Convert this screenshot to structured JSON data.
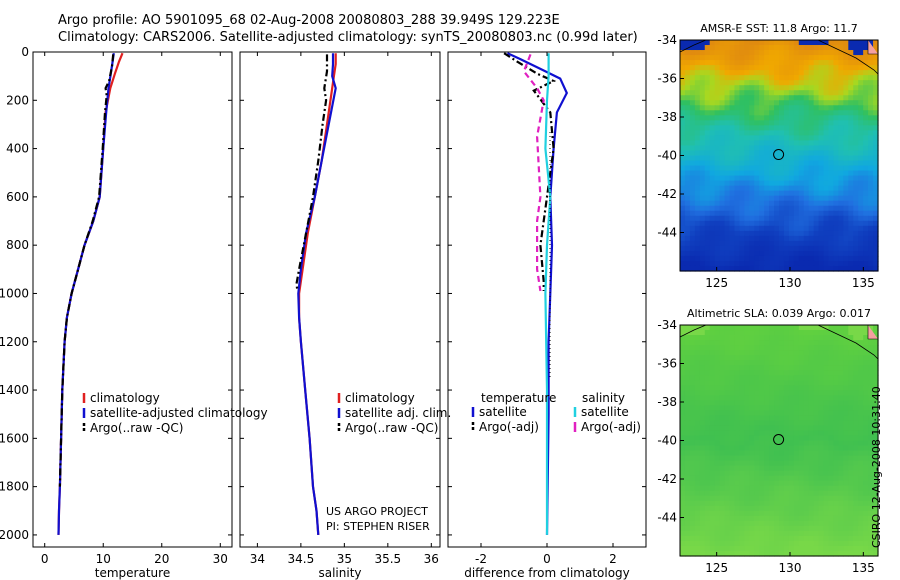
{
  "header": {
    "title_line1": "Argo profile: AO 5901095_68 02-Aug-2008 20080803_288 39.949S 129.223E",
    "title_line2": "Climatology: CARS2006. Satellite-adjusted climatology: synTS_20080803.nc (0.99d later)"
  },
  "credits": {
    "line1": "US ARGO PROJECT",
    "line2": "PI: STEPHEN RISER"
  },
  "stamp": "CSIRO 12-Aug-2008 10:31:40",
  "colors": {
    "climatology": "#e02020",
    "satellite": "#1010d0",
    "argo": "#000000",
    "satellite_salinity": "#20d0e0",
    "argo_salinity": "#e020c0"
  },
  "chart_data": [
    {
      "type": "line",
      "id": "temperature",
      "xlabel": "temperature",
      "ylabel": "",
      "xlim": [
        -2,
        32
      ],
      "ylim": [
        2050,
        0
      ],
      "xticks": [
        0,
        10,
        20,
        30
      ],
      "yticks": [
        0,
        200,
        400,
        600,
        800,
        1000,
        1200,
        1400,
        1600,
        1800,
        2000
      ],
      "legend": {
        "position": "lower-right",
        "entries": [
          "climatology",
          "satellite-adjusted climatology",
          "Argo(..raw -QC)"
        ]
      },
      "series": [
        {
          "name": "climatology",
          "style": "solid",
          "color_key": "climatology",
          "x": [
            13.3,
            12.7,
            12.0,
            11.2,
            10.4,
            10.0,
            9.4,
            8.3,
            6.8,
            5.7,
            4.6,
            3.8,
            3.4,
            3.0,
            2.8,
            2.6,
            2.45,
            2.35
          ],
          "y": [
            5,
            40,
            90,
            150,
            250,
            400,
            600,
            700,
            800,
            900,
            1000,
            1100,
            1200,
            1400,
            1600,
            1800,
            1900,
            2000
          ]
        },
        {
          "name": "satellite-adjusted climatology",
          "style": "solid",
          "color_key": "satellite",
          "x": [
            11.8,
            11.6,
            11.3,
            10.9,
            10.5,
            10.0,
            9.4,
            8.3,
            6.8,
            5.7,
            4.6,
            3.8,
            3.4,
            3.0,
            2.8,
            2.6,
            2.45,
            2.35
          ],
          "y": [
            5,
            40,
            90,
            150,
            250,
            400,
            600,
            700,
            800,
            900,
            1000,
            1100,
            1200,
            1400,
            1600,
            1800,
            1900,
            2000
          ]
        },
        {
          "name": "Argo(..raw -QC)",
          "style": "dashdot",
          "color_key": "argo",
          "x": [
            11.7,
            11.5,
            11.0,
            10.4,
            10.6,
            10.3,
            9.9,
            9.3,
            8.2,
            6.8,
            5.7,
            4.6,
            3.8,
            3.4,
            3.0,
            2.8,
            2.6
          ],
          "y": [
            10,
            60,
            120,
            150,
            180,
            250,
            400,
            600,
            700,
            800,
            900,
            1000,
            1100,
            1200,
            1400,
            1600,
            1800
          ]
        }
      ]
    },
    {
      "type": "line",
      "id": "salinity",
      "xlabel": "salinity",
      "ylabel": "",
      "xlim": [
        33.8,
        36.1
      ],
      "ylim": [
        2050,
        0
      ],
      "xticks": [
        34,
        34.5,
        35,
        35.5,
        36
      ],
      "xticklabels": [
        "34",
        "34.5",
        "35",
        "35.5",
        "36"
      ],
      "legend": {
        "position": "lower-right",
        "entries": [
          "climatology",
          "satellite adj. clim.",
          "Argo(..raw -QC)"
        ]
      },
      "series": [
        {
          "name": "climatology",
          "style": "solid",
          "color_key": "climatology",
          "x": [
            34.9,
            34.9,
            34.88,
            34.86,
            34.8,
            34.74,
            34.66,
            34.58,
            34.52,
            34.48,
            34.48,
            34.5,
            34.55,
            34.6,
            34.64,
            34.68,
            34.7
          ],
          "y": [
            5,
            50,
            100,
            150,
            300,
            450,
            600,
            750,
            900,
            1000,
            1100,
            1200,
            1400,
            1600,
            1800,
            1900,
            2000
          ]
        },
        {
          "name": "satellite adj. clim.",
          "style": "solid",
          "color_key": "satellite",
          "x": [
            34.87,
            34.87,
            34.86,
            34.9,
            34.82,
            34.74,
            34.66,
            34.56,
            34.5,
            34.47,
            34.48,
            34.5,
            34.55,
            34.6,
            34.64,
            34.68,
            34.7
          ],
          "y": [
            5,
            50,
            100,
            150,
            300,
            450,
            600,
            750,
            900,
            1000,
            1100,
            1200,
            1400,
            1600,
            1800,
            1900,
            2000
          ]
        },
        {
          "name": "Argo(..raw -QC)",
          "style": "dashdot",
          "color_key": "argo",
          "x": [
            34.8,
            34.8,
            34.77,
            34.79,
            34.75,
            34.7,
            34.64,
            34.56,
            34.48,
            34.45,
            34.46
          ],
          "y": [
            10,
            80,
            150,
            200,
            300,
            450,
            600,
            750,
            900,
            960,
            990
          ]
        }
      ]
    },
    {
      "type": "line",
      "id": "difference",
      "xlabel": "difference from climatology",
      "ylabel": "",
      "xlim": [
        -3,
        3
      ],
      "ylim": [
        2050,
        0
      ],
      "xticks": [
        -2,
        0,
        2
      ],
      "legend": {
        "position": "lower-right",
        "entries": [
          "temperature",
          "satellite",
          "Argo(-adj)",
          "salinity",
          "satellite",
          "Argo(-adj)"
        ]
      },
      "series": [
        {
          "name": "satellite",
          "style": "solid",
          "color_key": "satellite",
          "x": [
            -1.2,
            -0.8,
            -0.2,
            0.4,
            0.6,
            0.3,
            0.2,
            0.1,
            0.15,
            0.1,
            0.05,
            0.05,
            0.0
          ],
          "y": [
            5,
            30,
            70,
            110,
            170,
            250,
            400,
            600,
            800,
            1000,
            1200,
            1500,
            2000
          ]
        },
        {
          "name": "Argo(-adj)",
          "style": "dashdot",
          "color_key": "argo",
          "x": [
            -1.3,
            -0.9,
            -0.3,
            0.2,
            -0.4,
            0.1,
            0.2,
            0.0,
            -0.2,
            -0.1,
            -0.1
          ],
          "y": [
            5,
            40,
            90,
            120,
            160,
            250,
            400,
            600,
            800,
            950,
            990
          ]
        },
        {
          "name": "satellite",
          "style": "solid",
          "color_key": "satellite_salinity",
          "x": [
            0.05,
            0.05,
            0.0,
            -0.05,
            0.1,
            0.0,
            -0.05,
            0.0,
            0.0,
            0.0
          ],
          "y": [
            5,
            100,
            200,
            400,
            600,
            800,
            1000,
            1400,
            1800,
            2000
          ]
        },
        {
          "name": "Argo(-adj)",
          "style": "dashed",
          "color_key": "argo_salinity",
          "x": [
            -0.5,
            -0.7,
            -0.3,
            -0.1,
            -0.3,
            -0.2,
            -0.3,
            -0.3,
            -0.2
          ],
          "y": [
            10,
            80,
            150,
            200,
            350,
            600,
            700,
            900,
            990
          ]
        }
      ]
    },
    {
      "type": "heatmap",
      "id": "sst_map",
      "title": "AMSR-E SST: 11.8 Argo: 11.7",
      "xlim": [
        122.5,
        136
      ],
      "ylim": [
        -46,
        -34
      ],
      "xticks": [
        125,
        130,
        135
      ],
      "yticks": [
        -34,
        -36,
        -38,
        -40,
        -42,
        -44
      ],
      "marker": {
        "lon": 129.223,
        "lat": -39.949
      },
      "colors_by_lat": [
        {
          "lat": -34,
          "color": "#e08a10"
        },
        {
          "lat": -35.5,
          "color": "#f0a800"
        },
        {
          "lat": -36.5,
          "color": "#a8d820"
        },
        {
          "lat": -37.5,
          "color": "#30c060"
        },
        {
          "lat": -39,
          "color": "#20c0b0"
        },
        {
          "lat": -41,
          "color": "#10a8e0"
        },
        {
          "lat": -42.5,
          "color": "#2070e0"
        },
        {
          "lat": -44,
          "color": "#1040c0"
        },
        {
          "lat": -46,
          "color": "#0a2ab0"
        }
      ]
    },
    {
      "type": "heatmap",
      "id": "sla_map",
      "title": "Altimetric SLA: 0.039 Argo: 0.017",
      "xlim": [
        122.5,
        136
      ],
      "ylim": [
        -46,
        -34
      ],
      "xticks": [
        125,
        130,
        135
      ],
      "yticks": [
        -34,
        -36,
        -38,
        -40,
        -42,
        -44
      ],
      "marker": {
        "lon": 129.223,
        "lat": -39.949
      },
      "colors_by_lat": [
        {
          "lat": -34,
          "color": "#60d040"
        },
        {
          "lat": -40,
          "color": "#40c050"
        },
        {
          "lat": -46,
          "color": "#78d848"
        }
      ]
    }
  ]
}
